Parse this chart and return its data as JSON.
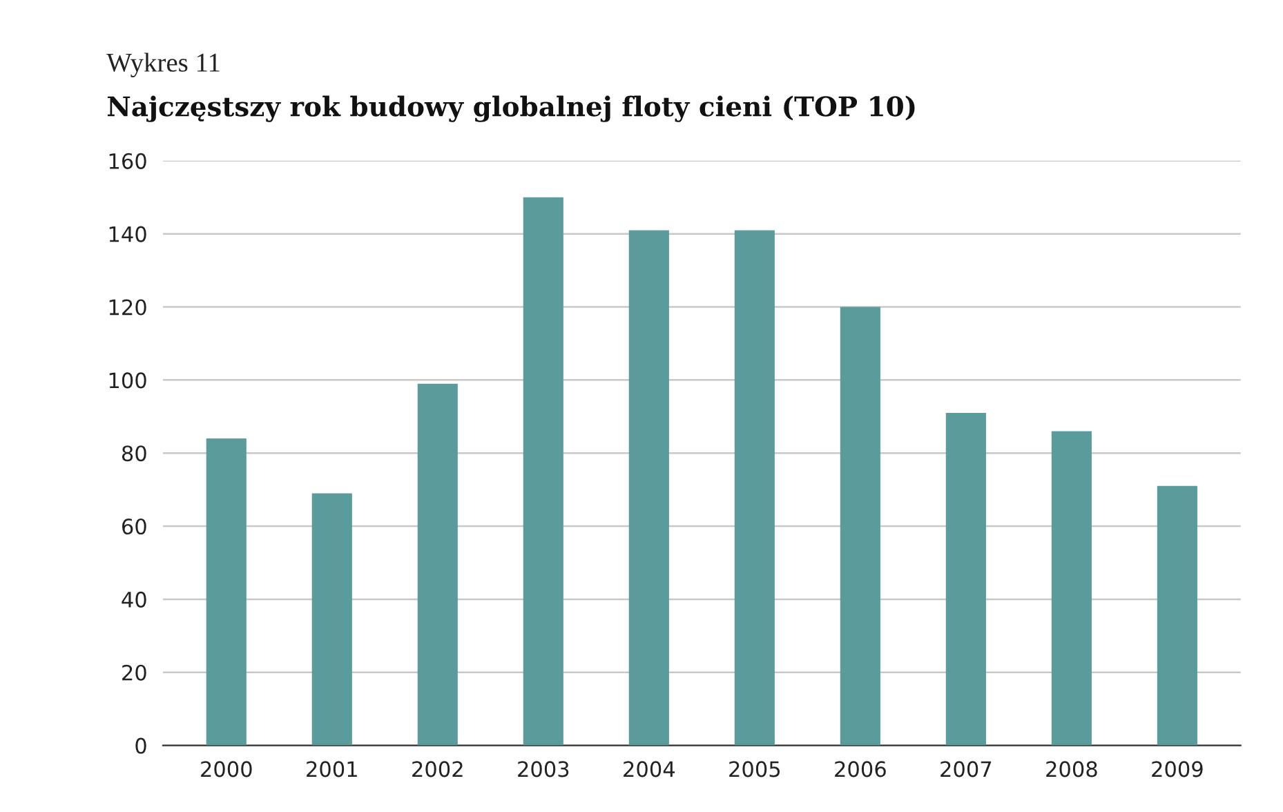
{
  "chart_data": {
    "type": "bar",
    "subtitle": "Wykres 11",
    "title": "Najczęstszy rok budowy globalnej floty cieni (TOP 10)",
    "categories": [
      "2000",
      "2001",
      "2002",
      "2003",
      "2004",
      "2005",
      "2006",
      "2007",
      "2008",
      "2009"
    ],
    "values": [
      84,
      69,
      99,
      150,
      141,
      141,
      120,
      91,
      86,
      71
    ],
    "color": "#5a9c9c",
    "ylim": [
      0,
      160
    ],
    "yticks": [
      0,
      20,
      40,
      60,
      80,
      100,
      120,
      140,
      160
    ],
    "grid": "y"
  }
}
